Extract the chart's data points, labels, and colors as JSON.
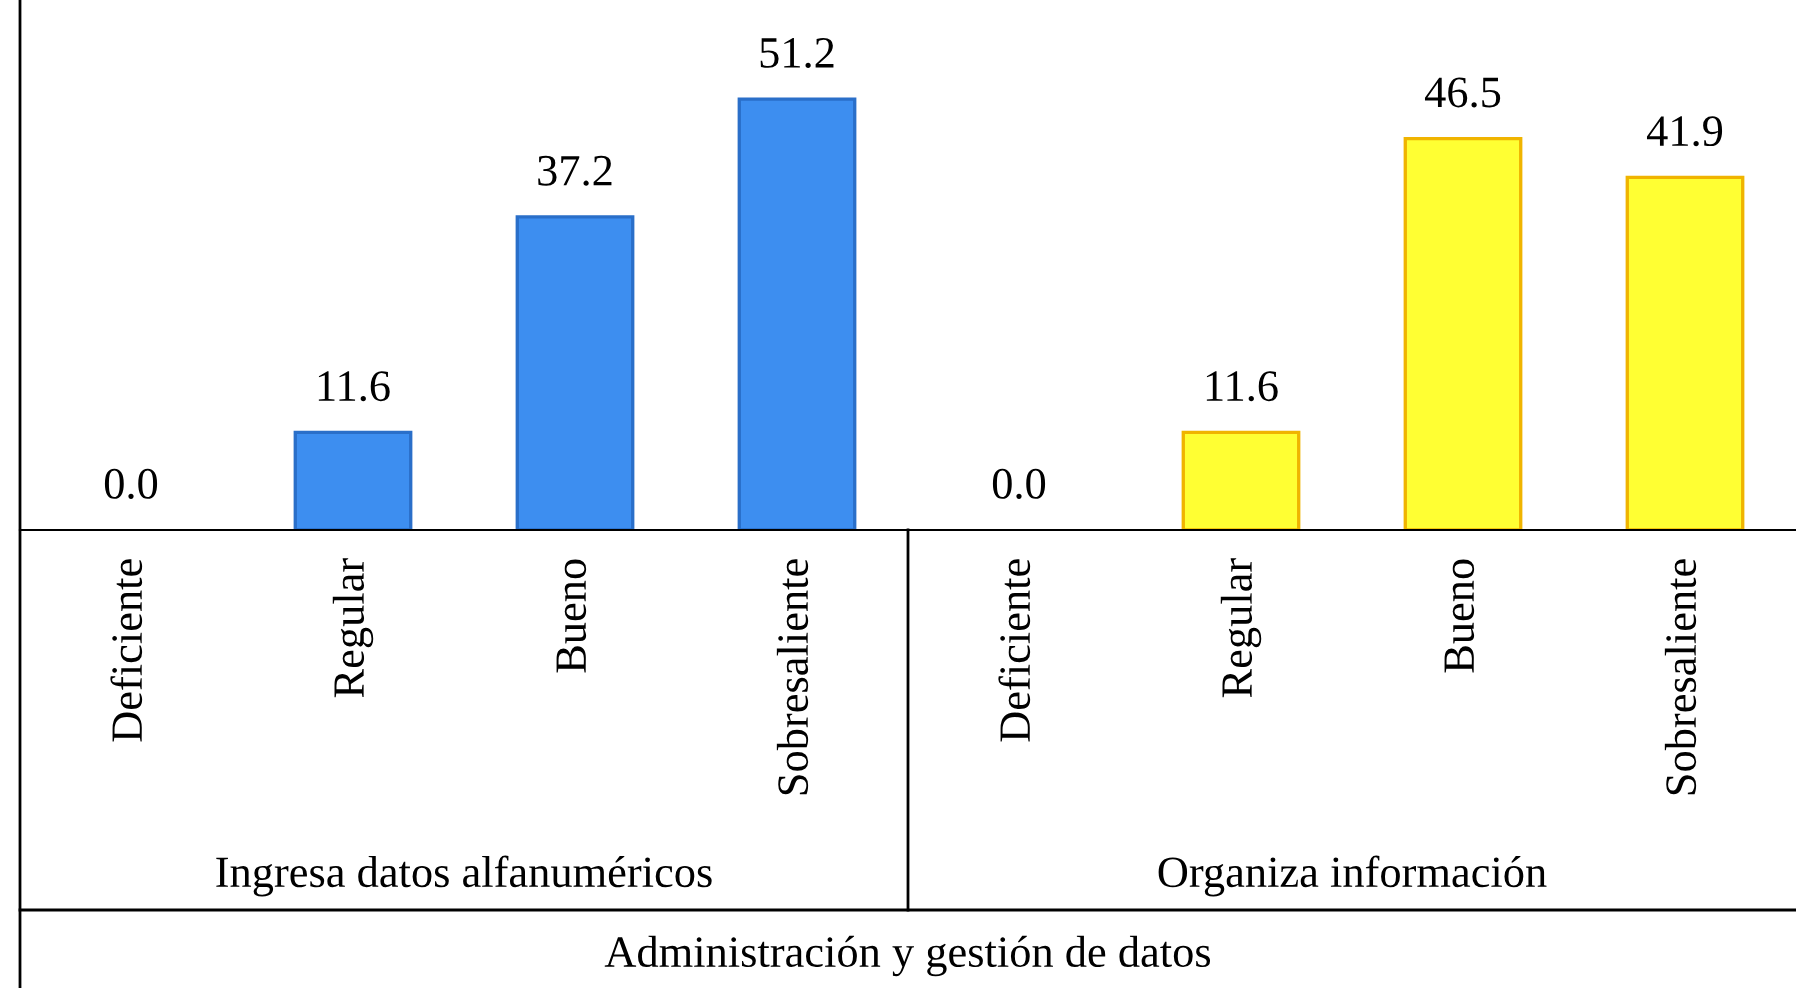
{
  "chart_data": {
    "type": "bar",
    "categories": [
      "Deficiente",
      "Regular",
      "Bueno",
      "Sobresaliente",
      "Deficiente",
      "Regular",
      "Bueno",
      "Sobresaliente"
    ],
    "series": [
      {
        "color": "#3d8ef0",
        "values": [
          0.0,
          11.6,
          37.2,
          51.2,
          null,
          null,
          null,
          null
        ],
        "value_labels": [
          "0.0",
          "11.6",
          "37.2",
          "51.2",
          null,
          null,
          null,
          null
        ]
      },
      {
        "color": "#ffff33",
        "values": [
          null,
          null,
          null,
          null,
          0.0,
          11.6,
          46.5,
          41.9
        ],
        "value_labels": [
          null,
          null,
          null,
          null,
          "0.0",
          "11.6",
          "46.5",
          "41.9"
        ]
      }
    ],
    "annotations": [
      "Ingresa datos alfanuméricos",
      "Organiza información",
      "Administración y gestión de datos"
    ]
  }
}
